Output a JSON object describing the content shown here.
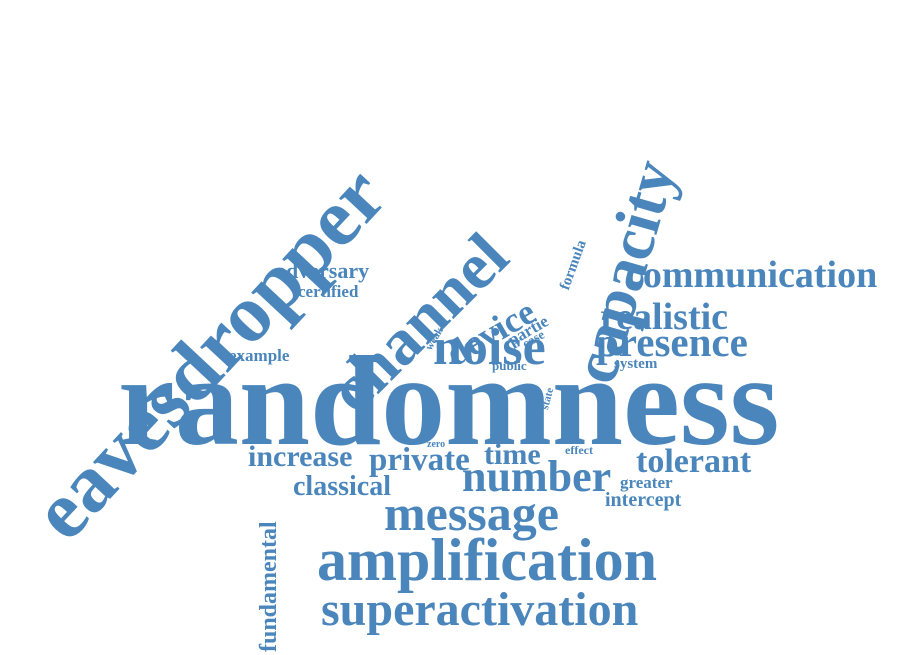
{
  "color": "#4a86bb",
  "words": {
    "randomness": "randomness",
    "eavesdropper": "eavesdropper",
    "channel": "channel",
    "capacity": "capacity",
    "noise": "noise",
    "device": "device",
    "communication": "communication",
    "realistic": "realistic",
    "presence": "presence",
    "system": "system",
    "adversary": "adversary",
    "certified": "certified",
    "example": "example",
    "weak": "weak",
    "partie": "partie",
    "case": "case",
    "formula": "formula",
    "public": "public",
    "allow": "allow",
    "state": "state",
    "zero": "zero",
    "effect": "effect",
    "increase": "increase",
    "private": "private",
    "time": "time",
    "number": "number",
    "tolerant": "tolerant",
    "classical": "classical",
    "greater": "greater",
    "intercept": "intercept",
    "message": "message",
    "fundamental": "fundamental",
    "amplification": "amplification",
    "superactivation": "superactivation"
  }
}
